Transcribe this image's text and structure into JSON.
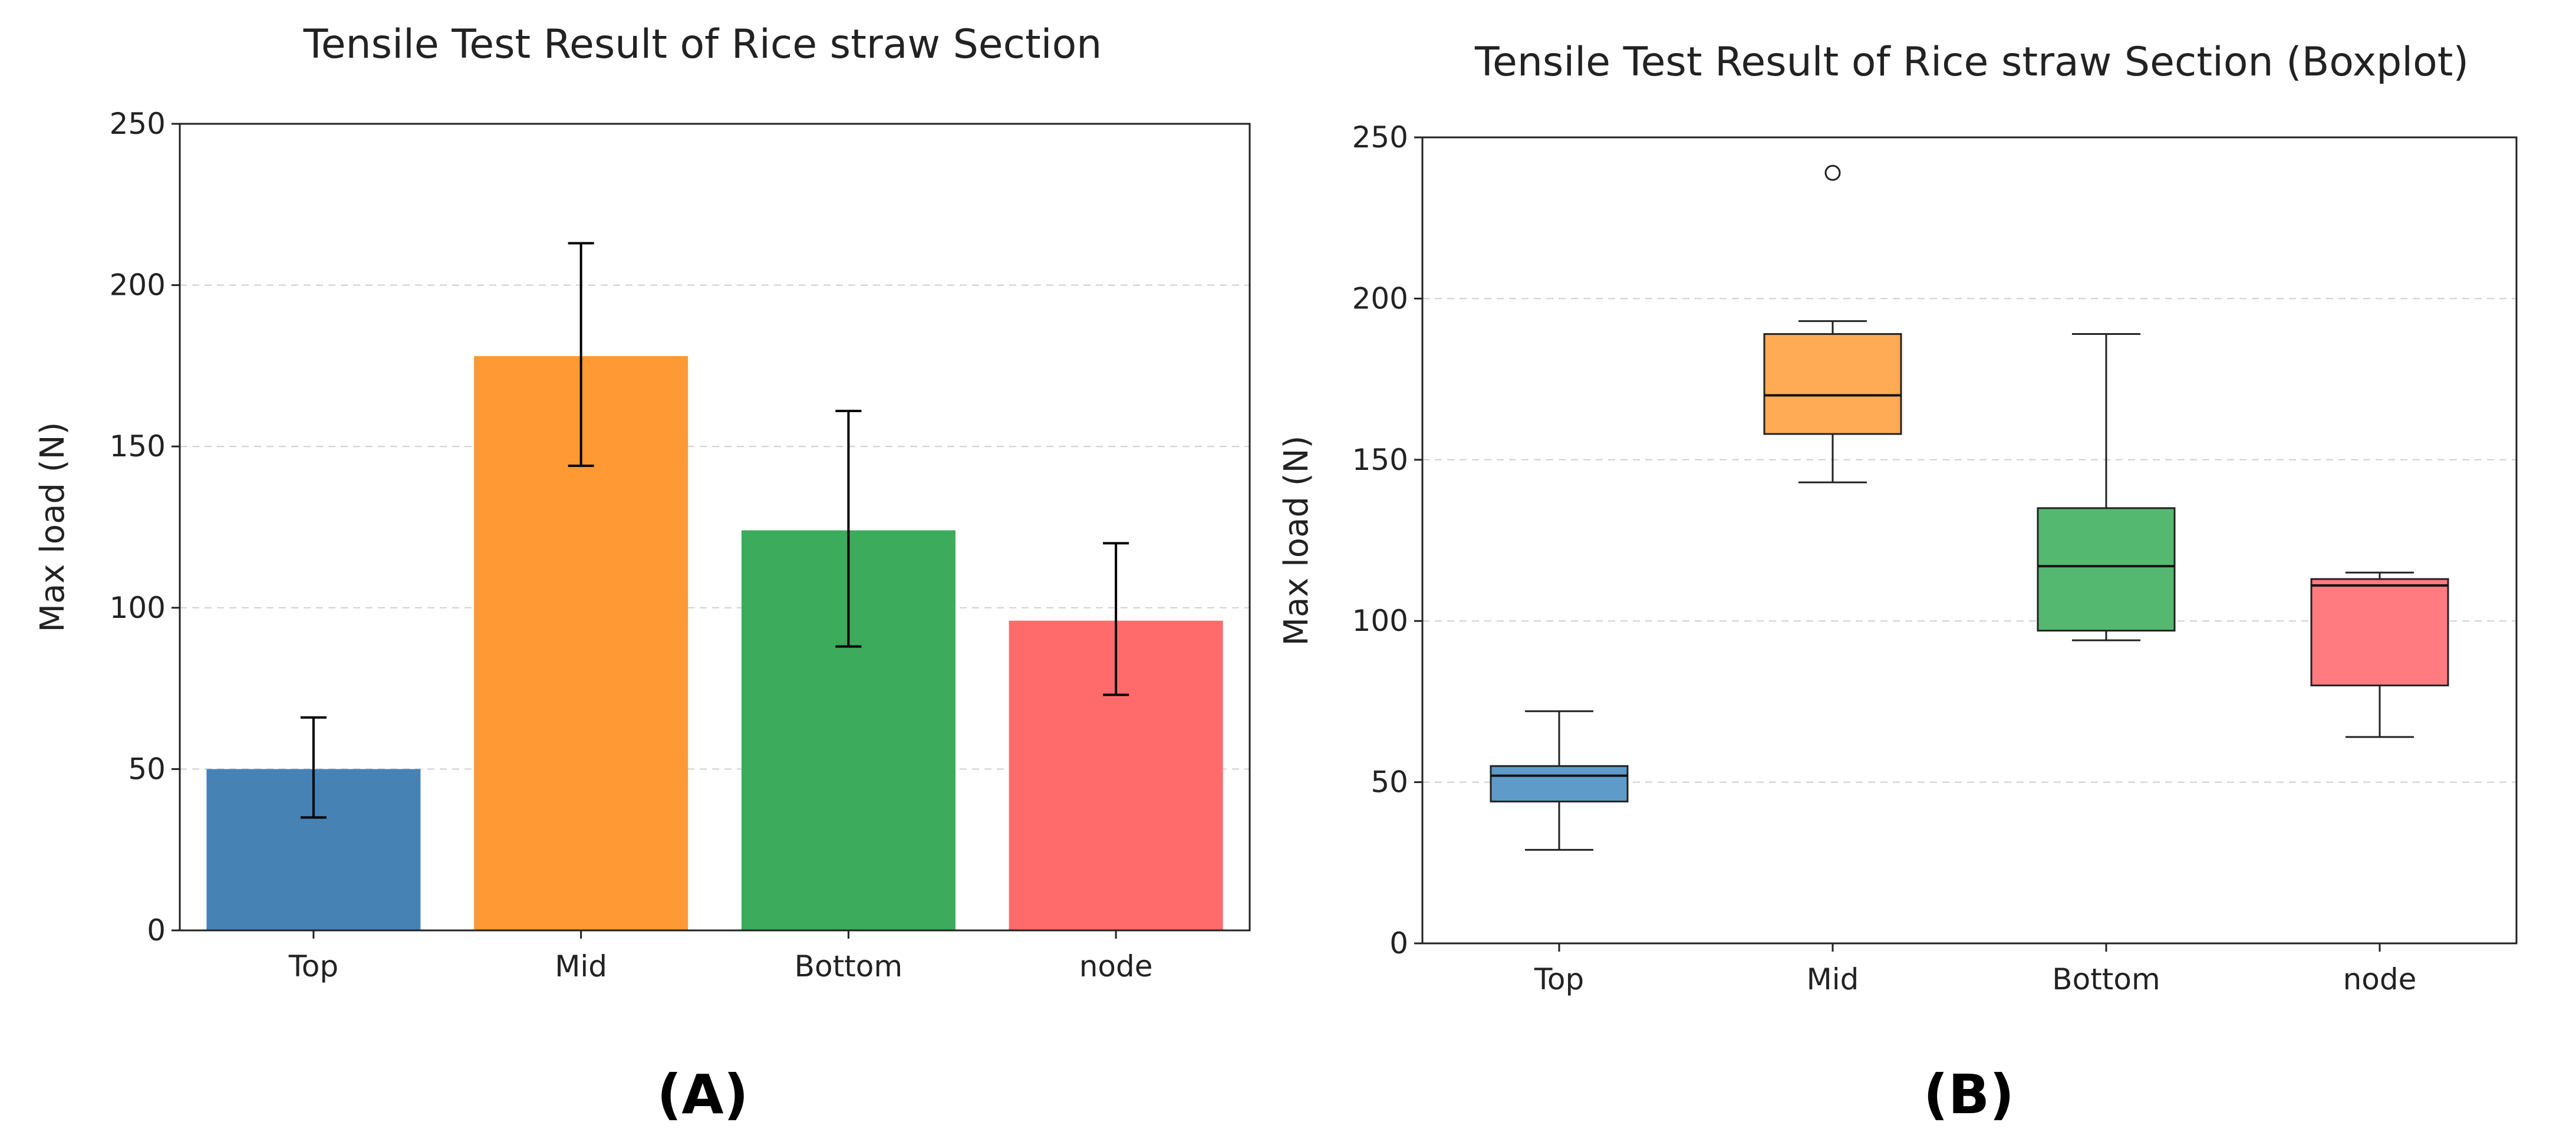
{
  "chart_data": [
    {
      "type": "bar",
      "title": "Tensile Test Result of Rice straw Section",
      "panel_label": "(A)",
      "xlabel": "",
      "ylabel": "Max load (N)",
      "ylim": [
        0,
        250
      ],
      "yticks": [
        0,
        50,
        100,
        150,
        200,
        250
      ],
      "grid": "y-dashed",
      "categories": [
        "Top",
        "Mid",
        "Bottom",
        "node"
      ],
      "values": [
        50,
        178,
        124,
        96
      ],
      "errors": [
        {
          "low": 35,
          "high": 66
        },
        {
          "low": 144,
          "high": 213
        },
        {
          "low": 88,
          "high": 161
        },
        {
          "low": 73,
          "high": 120
        }
      ],
      "colors": [
        "#4682b4",
        "#ff9933",
        "#3cab5b",
        "#ff6b6b"
      ]
    },
    {
      "type": "box",
      "title": "Tensile Test Result of Rice straw Section (Boxplot)",
      "panel_label": "(B)",
      "xlabel": "",
      "ylabel": "Max load (N)",
      "ylim": [
        0,
        250
      ],
      "yticks": [
        0,
        50,
        100,
        150,
        200,
        250
      ],
      "grid": "y-dashed",
      "categories": [
        "Top",
        "Mid",
        "Bottom",
        "node"
      ],
      "boxes": [
        {
          "whisker_low": 29,
          "q1": 44,
          "median": 52,
          "q3": 55,
          "whisker_high": 72,
          "outliers": []
        },
        {
          "whisker_low": 143,
          "q1": 158,
          "median": 170,
          "q3": 189,
          "whisker_high": 193,
          "outliers": [
            239
          ]
        },
        {
          "whisker_low": 94,
          "q1": 97,
          "median": 117,
          "q3": 135,
          "whisker_high": 189,
          "outliers": []
        },
        {
          "whisker_low": 64,
          "q1": 80,
          "median": 111,
          "q3": 113,
          "whisker_high": 115,
          "outliers": []
        }
      ],
      "colors": [
        "#5e9bc8",
        "#ffaa55",
        "#55b870",
        "#ff7b7f"
      ]
    }
  ]
}
